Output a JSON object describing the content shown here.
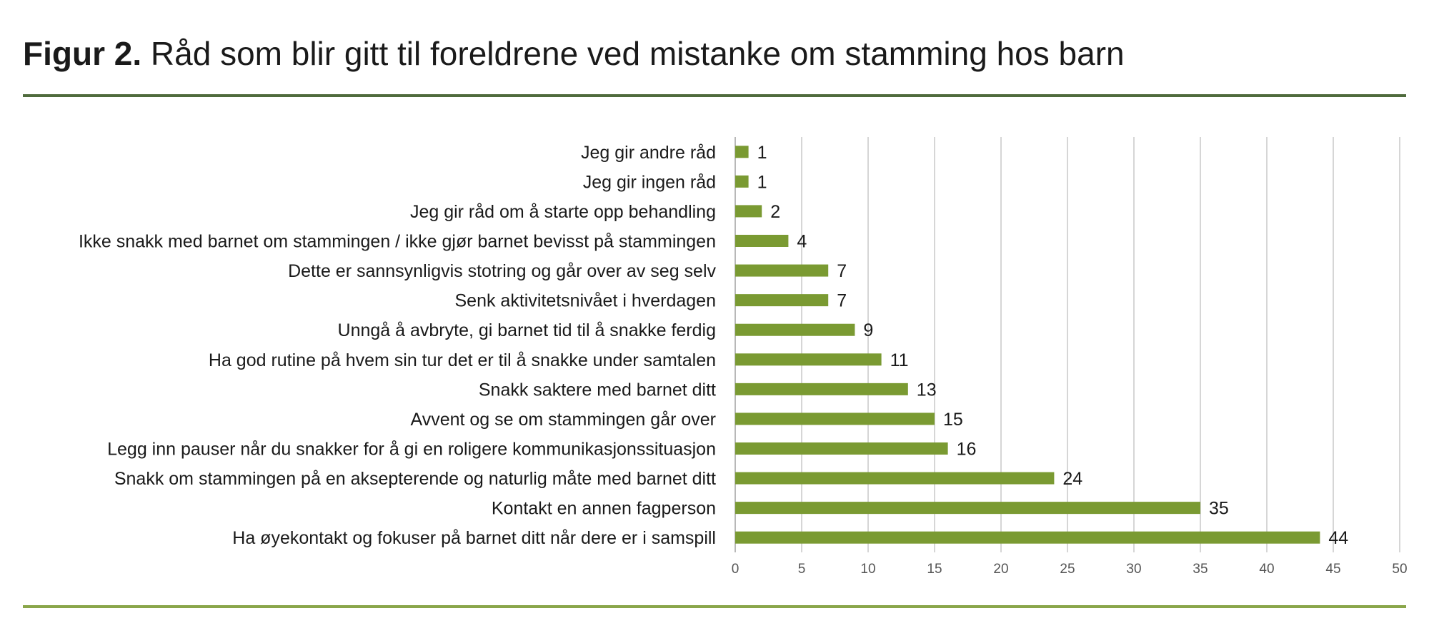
{
  "figure": {
    "title_prefix": "Figur 2.",
    "title_text": "Råd som blir gitt til foreldrene ved mistanke om stamming hos barn"
  },
  "chart_data": {
    "type": "bar",
    "orientation": "horizontal",
    "categories": [
      "Jeg gir andre råd",
      "Jeg gir ingen råd",
      "Jeg gir råd om å starte opp behandling",
      "Ikke snakk med barnet om stammingen / ikke gjør barnet bevisst på stammingen",
      "Dette er sannsynligvis stotring og går over av seg selv",
      "Senk aktivitetsnivået i hverdagen",
      "Unngå å avbryte, gi barnet tid til å snakke ferdig",
      "Ha god rutine på hvem sin tur det er til å snakke under samtalen",
      "Snakk saktere med barnet ditt",
      "Avvent og se om stammingen går over",
      "Legg inn pauser når du snakker for å gi en roligere kommunikasjonssituasjon",
      "Snakk om stammingen på en aksepterende og naturlig måte med barnet ditt",
      "Kontakt en annen fagperson",
      "Ha øyekontakt og fokuser på barnet ditt når dere er i samspill"
    ],
    "values": [
      1,
      1,
      2,
      4,
      7,
      7,
      9,
      11,
      13,
      15,
      16,
      24,
      35,
      44
    ],
    "xlim": [
      0,
      50
    ],
    "xticks": [
      0,
      5,
      10,
      15,
      20,
      25,
      30,
      35,
      40,
      45,
      50
    ],
    "grid": "vertical",
    "bar_color": "#7a9a32",
    "grid_color": "#c8c8c8",
    "data_labels": true
  }
}
